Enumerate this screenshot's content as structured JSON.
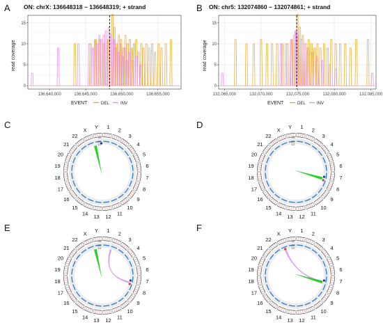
{
  "colors": {
    "DEL": "#f0a41c",
    "INV": "#ee82ee",
    "grid": "#ebebeb",
    "panel_border": "#333333",
    "track_blue": "#2f7fd4",
    "track_bg": "#ececec",
    "link_green": "#22cc22",
    "link_violet": "#d48ef0",
    "point_dark": "#1e3a8a",
    "point_red": "#e0332e"
  },
  "chart_data": [
    {
      "id": "A",
      "type": "line",
      "title": "ON: chrX: 136648318 ~ 136648319; + strand",
      "ylabel": "read coverage",
      "xlim": [
        136637000,
        136658200
      ],
      "ylim": [
        -0.8,
        16.8
      ],
      "xticks": [
        136640000,
        136645000,
        136650000,
        136655000
      ],
      "xtick_labels": [
        "136,640,000",
        "136,645,000",
        "136,650,000",
        "136,655,000"
      ],
      "yticks": [
        0,
        5,
        10,
        15
      ],
      "ytick_labels": [
        "0",
        "5",
        "10",
        "15"
      ],
      "target": 136648318,
      "legend": {
        "title": "EVENT",
        "position": "bottom",
        "items": [
          "DEL",
          "INV"
        ]
      },
      "series": [
        {
          "name": "DEL",
          "spikes": [
            [
              136643500,
              10
            ],
            [
              136645700,
              10
            ],
            [
              136646400,
              11
            ],
            [
              136647000,
              11
            ],
            [
              136647600,
              10
            ],
            [
              136648100,
              11
            ],
            [
              136648700,
              17
            ],
            [
              136649000,
              14
            ],
            [
              136649300,
              10
            ],
            [
              136649600,
              12
            ],
            [
              136649900,
              11
            ],
            [
              136650200,
              9
            ],
            [
              136650500,
              12
            ],
            [
              136650800,
              10
            ],
            [
              136651100,
              11
            ],
            [
              136651400,
              9
            ],
            [
              136651700,
              10
            ],
            [
              136652000,
              11
            ],
            [
              136652300,
              8
            ],
            [
              136652700,
              10
            ],
            [
              136653000,
              9
            ],
            [
              136653400,
              10
            ],
            [
              136653800,
              9
            ],
            [
              136654200,
              10
            ],
            [
              136654600,
              8
            ],
            [
              136655100,
              10
            ],
            [
              136655500,
              9
            ],
            [
              136656100,
              10
            ],
            [
              136656800,
              11
            ]
          ]
        },
        {
          "name": "INV",
          "spikes": [
            [
              136637600,
              3
            ],
            [
              136641200,
              9
            ],
            [
              136644000,
              10
            ],
            [
              136645500,
              10
            ],
            [
              136646000,
              9
            ],
            [
              136646300,
              11
            ],
            [
              136646600,
              10
            ],
            [
              136646900,
              12
            ],
            [
              136647200,
              11
            ],
            [
              136647500,
              12
            ],
            [
              136647800,
              13
            ],
            [
              136648200,
              14
            ],
            [
              136648500,
              12
            ],
            [
              136648900,
              11
            ],
            [
              136649200,
              9
            ],
            [
              136649500,
              8
            ],
            [
              136649800,
              10
            ],
            [
              136650100,
              7
            ],
            [
              136650400,
              9
            ],
            [
              136650700,
              6
            ],
            [
              136651000,
              8
            ],
            [
              136651500,
              6
            ],
            [
              136652000,
              7
            ],
            [
              136652600,
              5
            ]
          ]
        }
      ]
    },
    {
      "id": "B",
      "type": "line",
      "title": "ON: chr5: 132074860 ~ 132074861; + strand",
      "ylabel": "read coverage",
      "xlim": [
        132064200,
        132085700
      ],
      "ylim": [
        -0.8,
        16.8
      ],
      "xticks": [
        132065000,
        132070000,
        132075000,
        132080000,
        132085000
      ],
      "xtick_labels": [
        "132,065,000",
        "132,070,000",
        "132,075,000",
        "132,080,000",
        "132,085,000"
      ],
      "yticks": [
        0,
        5,
        10,
        15
      ],
      "ytick_labels": [
        "0",
        "5",
        "10",
        "15"
      ],
      "target": 132074860,
      "legend": {
        "title": "EVENT",
        "position": "bottom",
        "items": [
          "DEL",
          "INV"
        ]
      },
      "series": [
        {
          "name": "DEL",
          "spikes": [
            [
              132066500,
              11
            ],
            [
              132068000,
              10
            ],
            [
              132069000,
              10
            ],
            [
              132070000,
              11
            ],
            [
              132070800,
              10
            ],
            [
              132071500,
              10
            ],
            [
              132072200,
              10
            ],
            [
              132072900,
              10
            ],
            [
              132073600,
              10
            ],
            [
              132074200,
              11
            ],
            [
              132074700,
              13
            ],
            [
              132074960,
              17
            ],
            [
              132075300,
              14
            ],
            [
              132075700,
              12
            ],
            [
              132076100,
              10
            ],
            [
              132076500,
              11
            ],
            [
              132076900,
              10
            ],
            [
              132077300,
              9
            ],
            [
              132077700,
              10
            ],
            [
              132078100,
              9
            ],
            [
              132078600,
              10
            ],
            [
              132079100,
              9
            ],
            [
              132079600,
              11
            ],
            [
              132080200,
              10
            ],
            [
              132080800,
              10
            ],
            [
              132081500,
              10
            ],
            [
              132082200,
              9
            ],
            [
              132083000,
              11
            ],
            [
              132084600,
              11
            ]
          ]
        },
        {
          "name": "INV",
          "spikes": [
            [
              132064700,
              3
            ],
            [
              132072700,
              10
            ],
            [
              132073400,
              10
            ],
            [
              132074100,
              11
            ],
            [
              132074500,
              12
            ],
            [
              132074800,
              13
            ],
            [
              132075100,
              12
            ],
            [
              132075500,
              11
            ],
            [
              132075900,
              10
            ],
            [
              132076400,
              9
            ],
            [
              132077000,
              8
            ],
            [
              132077600,
              7
            ],
            [
              132078400,
              6
            ],
            [
              132079300,
              5
            ],
            [
              132080200,
              4
            ],
            [
              132085200,
              3
            ]
          ]
        }
      ]
    }
  ],
  "circos": {
    "chromosome_labels": [
      "1",
      "2",
      "3",
      "4",
      "5",
      "6",
      "7",
      "8",
      "9",
      "10",
      "11",
      "12",
      "13",
      "14",
      "15",
      "16",
      "17",
      "18",
      "19",
      "20",
      "21",
      "22",
      "X",
      "Y"
    ],
    "scale_labels": [
      "20",
      "20",
      "10"
    ],
    "panels": [
      {
        "id": "C",
        "links": [
          {
            "type": "spoke",
            "color": "link_green",
            "angle": 345
          }
        ],
        "points": [
          {
            "angle": 358,
            "color": "point_dark"
          }
        ]
      },
      {
        "id": "D",
        "links": [
          {
            "type": "spoke",
            "color": "link_green",
            "angle": 104
          }
        ],
        "points": [
          {
            "angle": 100,
            "color": "point_dark"
          },
          {
            "angle": 107,
            "color": "point_red"
          }
        ]
      },
      {
        "id": "E",
        "links": [
          {
            "type": "spoke",
            "color": "link_green",
            "angle": 345
          },
          {
            "type": "arc",
            "color": "link_violet",
            "from": 18,
            "to": 104
          }
        ],
        "points": [
          {
            "angle": 100,
            "color": "point_dark"
          },
          {
            "angle": 107,
            "color": "point_red"
          }
        ]
      },
      {
        "id": "F",
        "links": [
          {
            "type": "arc",
            "color": "link_violet",
            "from": 338,
            "to": 103
          },
          {
            "type": "spoke",
            "color": "link_green",
            "angle": 104
          }
        ],
        "points": [
          {
            "angle": 100,
            "color": "point_dark"
          },
          {
            "angle": 338,
            "color": "point_red"
          }
        ]
      }
    ]
  }
}
